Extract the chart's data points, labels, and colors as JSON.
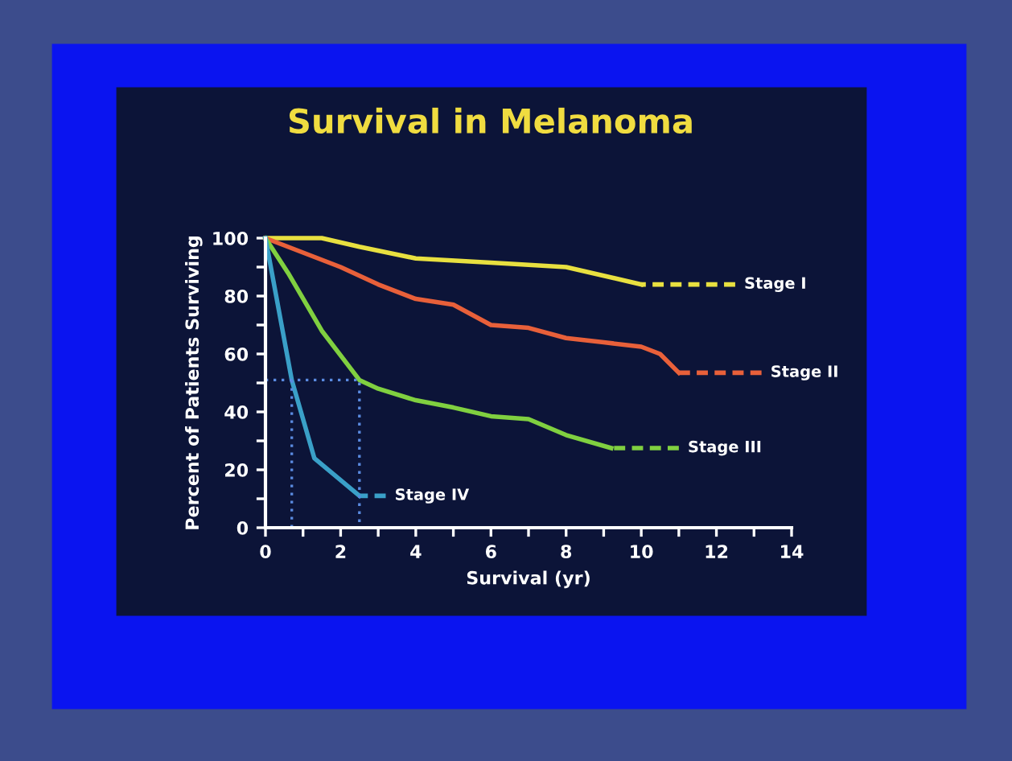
{
  "chart_data": {
    "type": "line",
    "title": "Survival in Melanoma",
    "xlabel": "Survival (yr)",
    "ylabel": "Percent of Patients Surviving",
    "xlim": [
      0,
      14
    ],
    "ylim": [
      0,
      100
    ],
    "xticks": [
      0,
      {
        "value": 1,
        "label": null
      },
      2,
      {
        "value": 3,
        "label": null
      },
      4,
      {
        "value": 5,
        "label": null
      },
      6,
      {
        "value": 7,
        "label": null
      },
      8,
      {
        "value": 9,
        "label": null
      },
      10,
      {
        "value": 11,
        "label": null
      },
      12,
      {
        "value": 13,
        "label": null
      },
      14
    ],
    "yticks": [
      0,
      {
        "value": 10,
        "label": null
      },
      20,
      {
        "value": 30,
        "label": null
      },
      40,
      {
        "value": 50,
        "label": null
      },
      60,
      {
        "value": 70,
        "label": null
      },
      80,
      {
        "value": 90,
        "label": null
      },
      100
    ],
    "grid": false,
    "legend": false,
    "marker": "none",
    "series": [
      {
        "color": "#e8e040",
        "line_style": "solid",
        "x": [
          0,
          1.5,
          2.5,
          4,
          6,
          8,
          10
        ],
        "values": [
          100,
          100,
          97,
          93,
          91.5,
          90,
          84
        ]
      },
      {
        "color": "#e8e040",
        "line_style": "dashed",
        "name": "Stage I",
        "x": [
          10,
          12.5
        ],
        "values": [
          84,
          84
        ]
      },
      {
        "color": "#e8603a",
        "line_style": "solid",
        "x": [
          0,
          2,
          3,
          4,
          5,
          6,
          7,
          8,
          9,
          10,
          10.5,
          11
        ],
        "values": [
          100,
          90,
          84,
          79,
          77,
          70,
          69,
          65.5,
          64,
          62.5,
          60,
          53.5
        ]
      },
      {
        "color": "#e8603a",
        "line_style": "dashed",
        "name": "Stage II",
        "x": [
          11,
          13.2
        ],
        "values": [
          53.5,
          53.5
        ]
      },
      {
        "color": "#80d040",
        "line_style": "solid",
        "x": [
          0,
          0.6,
          1.5,
          2.5,
          3,
          4,
          5,
          6,
          7,
          8,
          9.2
        ],
        "values": [
          100,
          88,
          68,
          51,
          48,
          44,
          41.5,
          38.5,
          37.5,
          32,
          27.5
        ]
      },
      {
        "color": "#80d040",
        "line_style": "dashed",
        "name": "Stage III",
        "x": [
          9.2,
          11
        ],
        "values": [
          27.5,
          27.5
        ]
      },
      {
        "color": "#3aa0c8",
        "line_style": "solid",
        "x": [
          0,
          0.7,
          1.3,
          2.5
        ],
        "values": [
          100,
          51,
          24,
          11
        ]
      },
      {
        "color": "#3aa0c8",
        "line_style": "dashed",
        "name": "Stage IV",
        "x": [
          2.5,
          3.2
        ],
        "values": [
          11,
          11
        ]
      },
      {
        "color": "#5a8ae0",
        "line_style": "dotted",
        "x": [
          0,
          2.5,
          2.5
        ],
        "values": [
          51,
          51,
          0
        ]
      },
      {
        "color": "#5a8ae0",
        "line_style": "dotted",
        "x": [
          0.7,
          0.7
        ],
        "values": [
          51,
          0
        ]
      }
    ]
  }
}
